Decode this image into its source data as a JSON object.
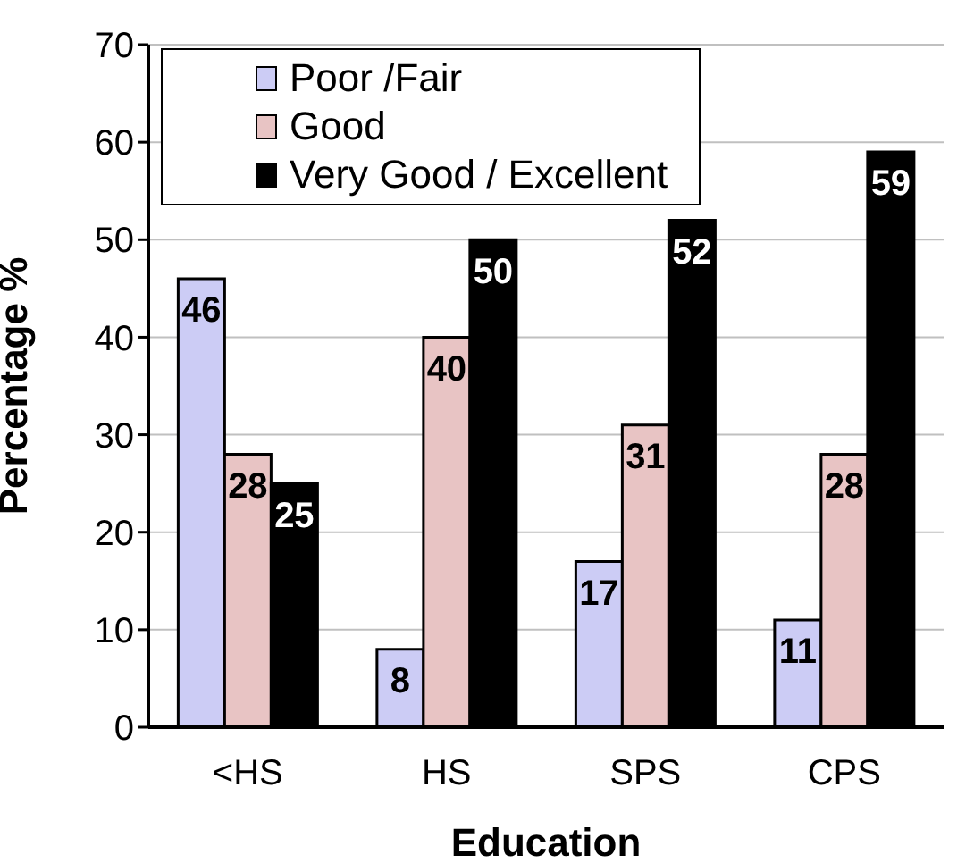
{
  "chart_data": {
    "type": "bar",
    "xlabel": "Education",
    "ylabel": "Percentage %",
    "categories": [
      "<HS",
      "HS",
      "SPS",
      "CPS"
    ],
    "series": [
      {
        "name": "Poor /Fair",
        "color": "#ccccf5",
        "values": [
          46,
          8,
          17,
          11
        ]
      },
      {
        "name": "Good",
        "color": "#e8c4c4",
        "values": [
          28,
          40,
          31,
          28
        ]
      },
      {
        "name": "Very Good / Excellent",
        "color": "#000000",
        "values": [
          25,
          50,
          52,
          59
        ]
      }
    ],
    "ylim": [
      0,
      70
    ],
    "yticks": [
      0,
      10,
      20,
      30,
      40,
      50,
      60,
      70
    ],
    "grid": "y",
    "legend": "top left",
    "data_labels": true
  }
}
